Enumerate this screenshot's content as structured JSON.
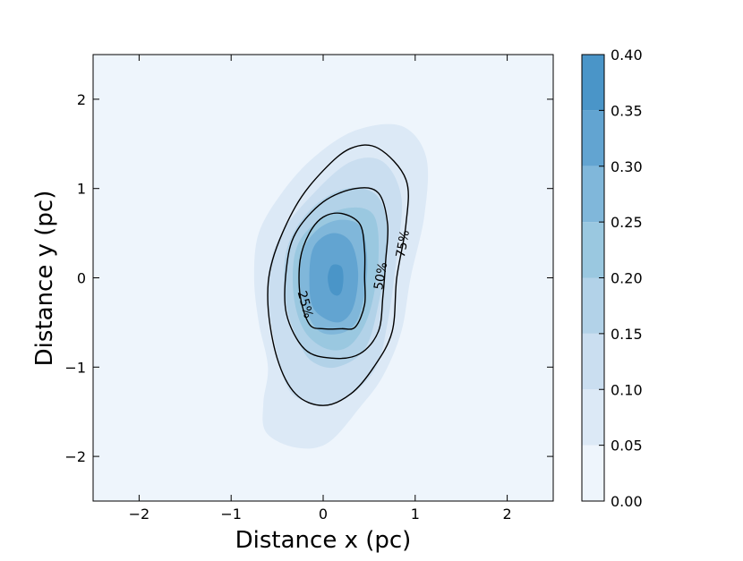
{
  "chart_data": {
    "type": "contour",
    "xlabel": "Distance x (pc)",
    "ylabel": "Distance y (pc)",
    "xlim": [
      -2.5,
      2.5
    ],
    "ylim": [
      -2.5,
      2.5
    ],
    "xticks": [
      -2,
      -1,
      0,
      1,
      2
    ],
    "yticks": [
      -2,
      -1,
      0,
      1,
      2
    ],
    "xtick_labels": [
      "−2",
      "−1",
      "0",
      "1",
      "2"
    ],
    "ytick_labels": [
      "−2",
      "−1",
      "0",
      "1",
      "2"
    ],
    "colormap": "Blues",
    "colorbar": {
      "levels": [
        0.0,
        0.05,
        0.1,
        0.15,
        0.2,
        0.25,
        0.3,
        0.35,
        0.4
      ],
      "tick_labels": [
        "0.00",
        "0.05",
        "0.10",
        "0.15",
        "0.20",
        "0.25",
        "0.30",
        "0.35",
        "0.40"
      ],
      "colors": [
        "#eef5fc",
        "#dce9f6",
        "#cadef0",
        "#b2d2e8",
        "#9ac8e0",
        "#80b7da",
        "#62a4d1",
        "#4a95c8"
      ]
    },
    "filled_contours": [
      {
        "level": 0.0,
        "color": "#eef5fc"
      },
      {
        "level": 0.05,
        "color": "#dce9f6",
        "path": [
          [
            -0.62,
            -1.73
          ],
          [
            -0.65,
            -1.4
          ],
          [
            -0.6,
            -1.0
          ],
          [
            -0.7,
            -0.5
          ],
          [
            -0.75,
            0.0
          ],
          [
            -0.7,
            0.5
          ],
          [
            -0.45,
            0.95
          ],
          [
            -0.1,
            1.35
          ],
          [
            0.35,
            1.65
          ],
          [
            0.85,
            1.7
          ],
          [
            1.12,
            1.35
          ],
          [
            1.1,
            0.7
          ],
          [
            0.95,
            0.0
          ],
          [
            0.85,
            -0.6
          ],
          [
            0.65,
            -1.1
          ],
          [
            0.4,
            -1.45
          ],
          [
            0.05,
            -1.85
          ],
          [
            -0.3,
            -1.9
          ]
        ]
      },
      {
        "level": 0.1,
        "color": "#cadef0",
        "path": [
          [
            -0.4,
            -1.2
          ],
          [
            -0.55,
            -0.6
          ],
          [
            -0.6,
            0.0
          ],
          [
            -0.45,
            0.5
          ],
          [
            -0.1,
            0.95
          ],
          [
            0.3,
            1.3
          ],
          [
            0.65,
            1.3
          ],
          [
            0.85,
            0.9
          ],
          [
            0.8,
            0.25
          ],
          [
            0.7,
            -0.5
          ],
          [
            0.55,
            -1.05
          ],
          [
            0.15,
            -1.4
          ],
          [
            -0.2,
            -1.38
          ]
        ]
      },
      {
        "level": 0.15,
        "color": "#b2d2e8",
        "path": [
          [
            -0.25,
            -0.75
          ],
          [
            -0.4,
            -0.3
          ],
          [
            -0.4,
            0.3
          ],
          [
            -0.15,
            0.75
          ],
          [
            0.25,
            1.0
          ],
          [
            0.6,
            0.9
          ],
          [
            0.7,
            0.4
          ],
          [
            0.6,
            -0.3
          ],
          [
            0.45,
            -0.8
          ],
          [
            0.15,
            -1.0
          ],
          [
            -0.1,
            -0.95
          ]
        ]
      },
      {
        "level": 0.2,
        "color": "#9ac8e0",
        "path": [
          [
            -0.2,
            -0.6
          ],
          [
            -0.32,
            -0.2
          ],
          [
            -0.3,
            0.3
          ],
          [
            -0.1,
            0.6
          ],
          [
            0.25,
            0.78
          ],
          [
            0.55,
            0.7
          ],
          [
            0.6,
            0.2
          ],
          [
            0.5,
            -0.4
          ],
          [
            0.3,
            -0.75
          ],
          [
            0.05,
            -0.8
          ]
        ]
      },
      {
        "level": 0.25,
        "color": "#80b7da",
        "path": [
          [
            -0.15,
            -0.45
          ],
          [
            -0.25,
            -0.1
          ],
          [
            -0.22,
            0.3
          ],
          [
            -0.05,
            0.55
          ],
          [
            0.2,
            0.65
          ],
          [
            0.42,
            0.55
          ],
          [
            0.48,
            0.1
          ],
          [
            0.4,
            -0.4
          ],
          [
            0.25,
            -0.6
          ],
          [
            0.0,
            -0.62
          ]
        ]
      },
      {
        "level": 0.3,
        "color": "#62a4d1",
        "path": [
          [
            -0.1,
            -0.35
          ],
          [
            -0.15,
            0.0
          ],
          [
            -0.1,
            0.35
          ],
          [
            0.1,
            0.5
          ],
          [
            0.3,
            0.4
          ],
          [
            0.38,
            0.05
          ],
          [
            0.32,
            -0.35
          ],
          [
            0.15,
            -0.5
          ]
        ]
      },
      {
        "level": 0.35,
        "color": "#4a95c8",
        "path": [
          [
            0.08,
            -0.15
          ],
          [
            0.05,
            0.0
          ],
          [
            0.08,
            0.12
          ],
          [
            0.13,
            0.15
          ],
          [
            0.2,
            0.12
          ],
          [
            0.22,
            0.0
          ],
          [
            0.2,
            -0.15
          ],
          [
            0.15,
            -0.2
          ]
        ]
      }
    ],
    "line_contours": [
      {
        "label": "25%",
        "path": [
          [
            -0.15,
            -0.52
          ],
          [
            -0.25,
            -0.2
          ],
          [
            -0.25,
            0.2
          ],
          [
            -0.15,
            0.5
          ],
          [
            0.0,
            0.68
          ],
          [
            0.2,
            0.72
          ],
          [
            0.4,
            0.6
          ],
          [
            0.45,
            0.3
          ],
          [
            0.45,
            0.0
          ],
          [
            0.45,
            -0.3
          ],
          [
            0.35,
            -0.55
          ],
          [
            0.2,
            -0.57
          ],
          [
            0.0,
            -0.57
          ]
        ],
        "label_at": [
          -0.2,
          -0.3
        ]
      },
      {
        "label": "50%",
        "path": [
          [
            -0.2,
            -0.8
          ],
          [
            -0.4,
            -0.4
          ],
          [
            -0.4,
            0.1
          ],
          [
            -0.3,
            0.5
          ],
          [
            0.0,
            0.85
          ],
          [
            0.35,
            1.0
          ],
          [
            0.6,
            0.95
          ],
          [
            0.7,
            0.6
          ],
          [
            0.68,
            0.2
          ],
          [
            0.65,
            -0.2
          ],
          [
            0.6,
            -0.6
          ],
          [
            0.4,
            -0.85
          ],
          [
            0.1,
            -0.9
          ]
        ],
        "label_at": [
          0.63,
          0.02
        ]
      },
      {
        "label": "75%",
        "path": [
          [
            0.0,
            -1.43
          ],
          [
            -0.3,
            -1.3
          ],
          [
            -0.5,
            -0.9
          ],
          [
            -0.6,
            -0.3
          ],
          [
            -0.55,
            0.2
          ],
          [
            -0.3,
            0.8
          ],
          [
            0.0,
            1.2
          ],
          [
            0.3,
            1.45
          ],
          [
            0.6,
            1.45
          ],
          [
            0.9,
            1.1
          ],
          [
            0.9,
            0.6
          ],
          [
            0.8,
            0.0
          ],
          [
            0.75,
            -0.6
          ],
          [
            0.55,
            -1.0
          ],
          [
            0.3,
            -1.3
          ]
        ],
        "label_at": [
          0.87,
          0.38
        ]
      }
    ]
  }
}
